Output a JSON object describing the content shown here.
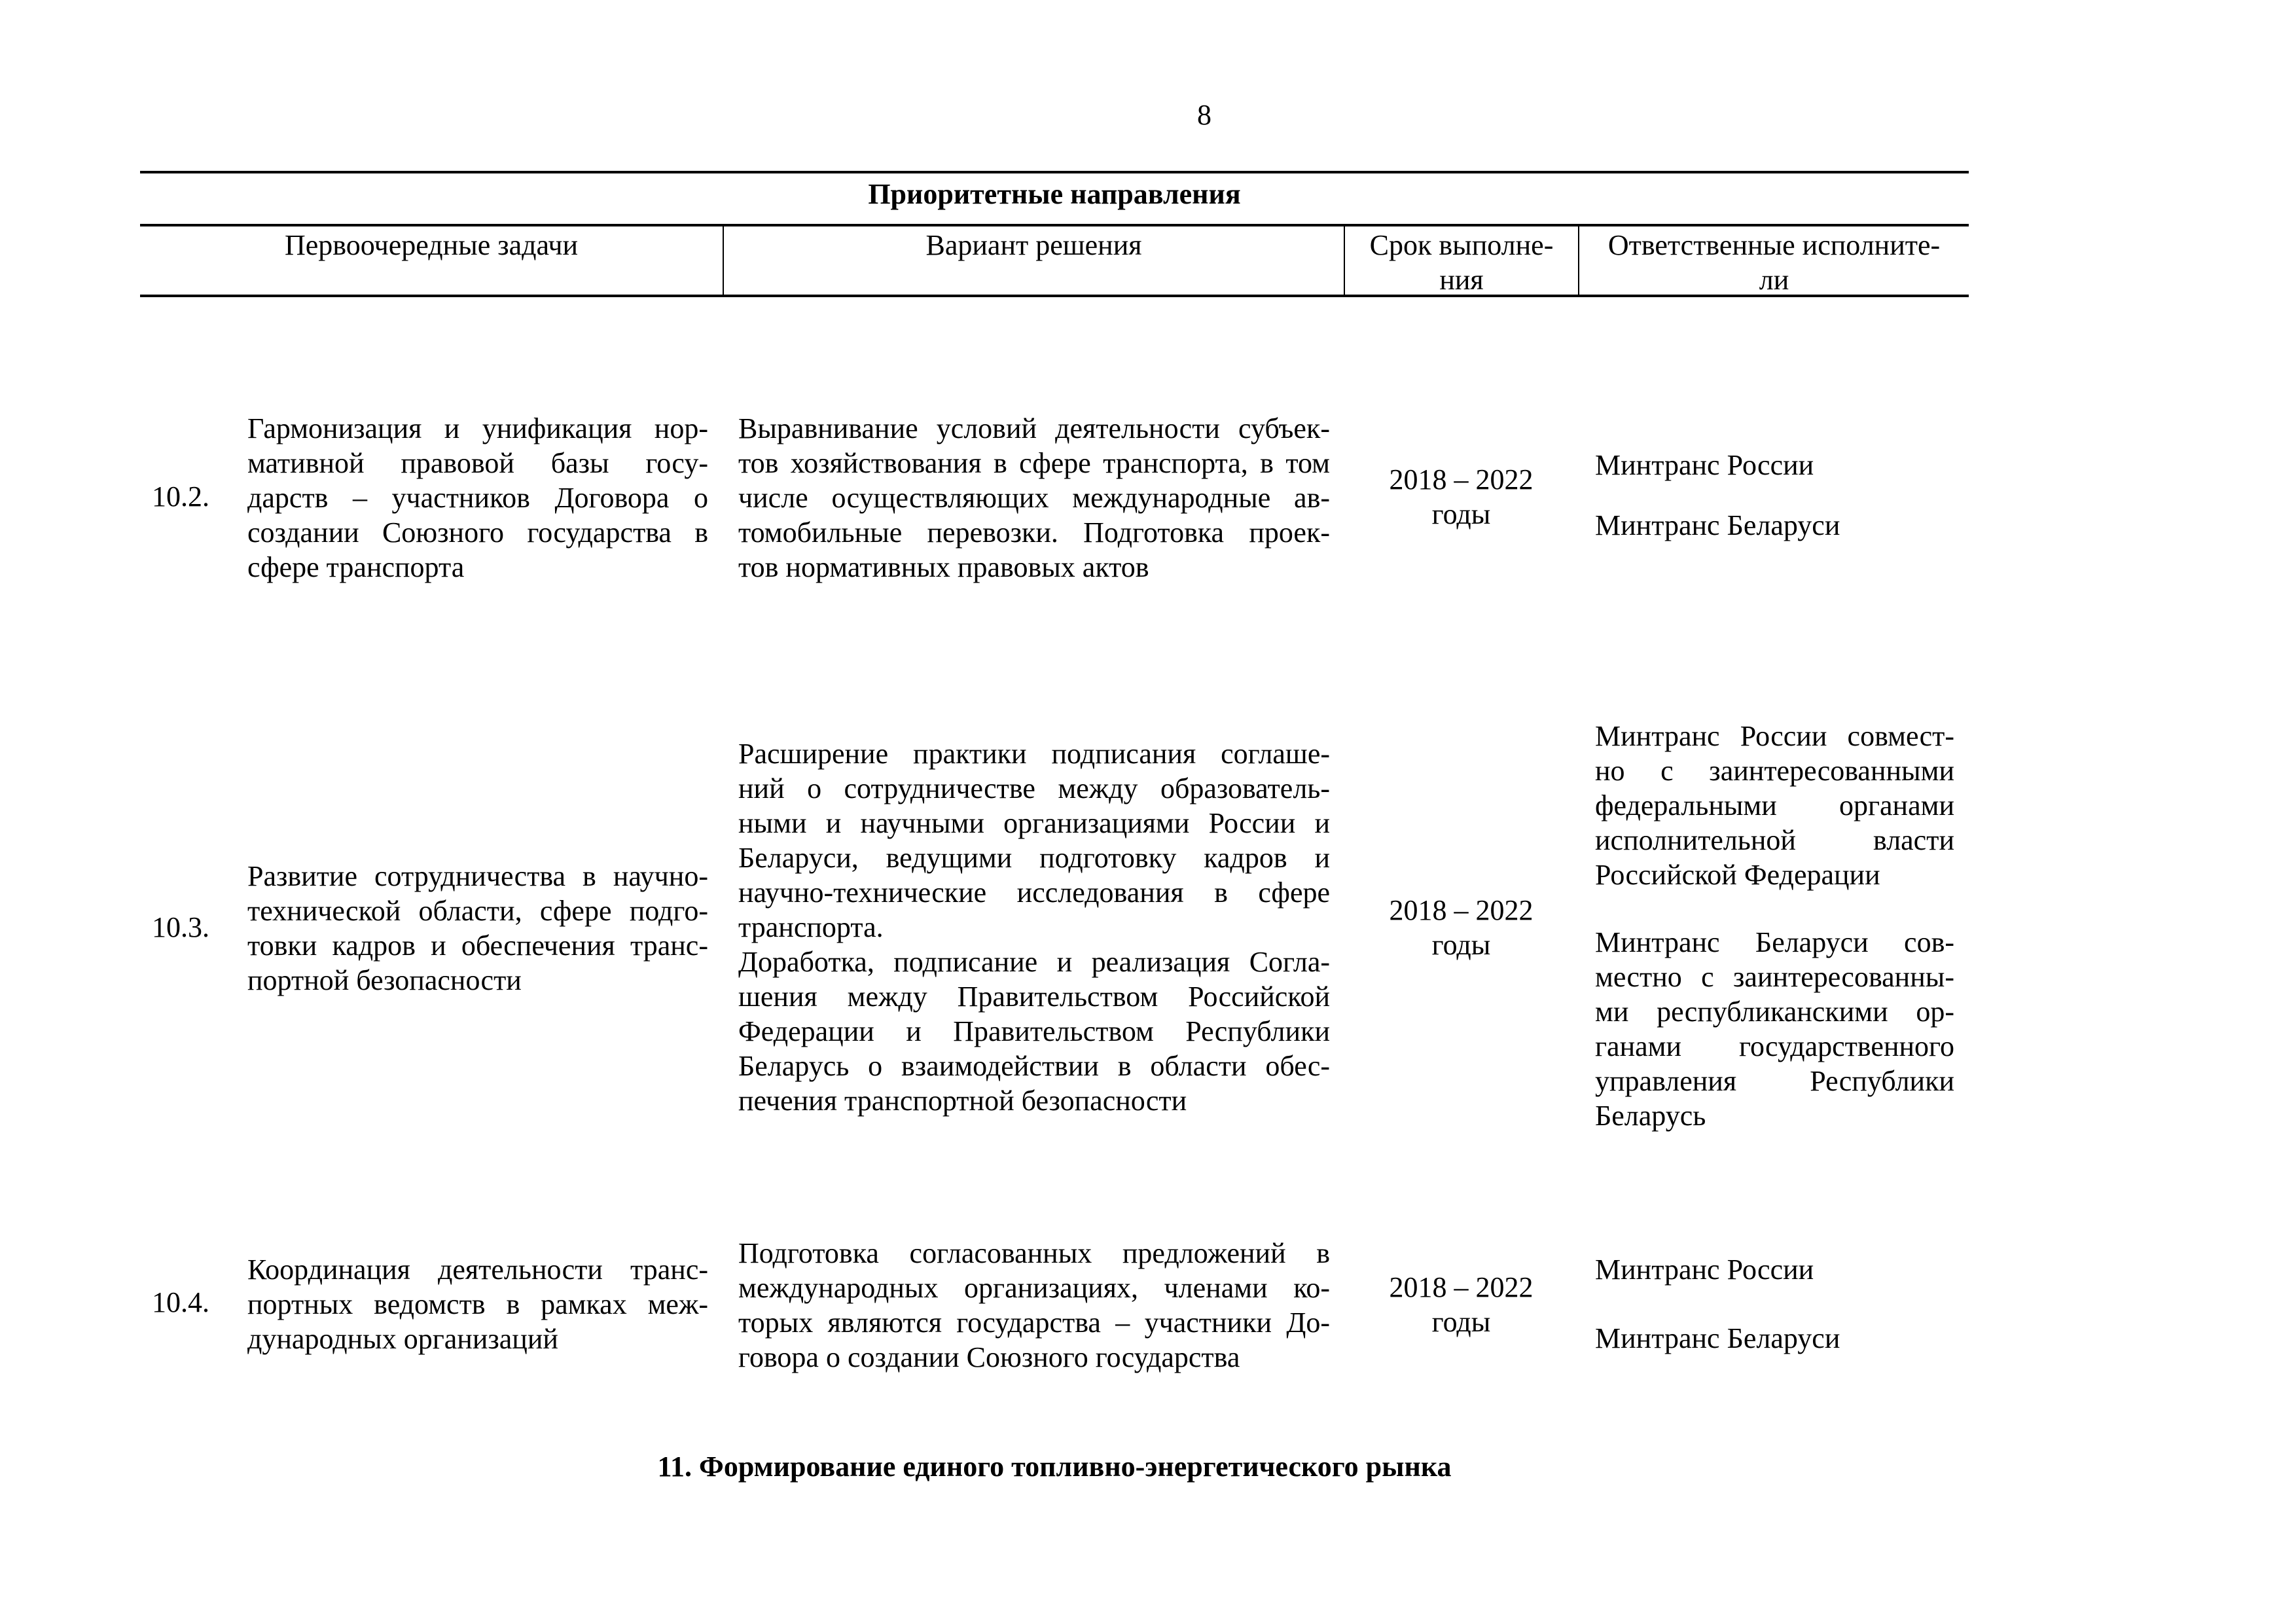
{
  "page_number": "8",
  "table": {
    "title": "Приоритетные направления",
    "headers": {
      "tasks": "Первоочередные задачи",
      "solution": "Вариант решения",
      "term": [
        "Срок выполне-",
        "ния"
      ],
      "responsible": [
        "Ответственные исполните-",
        "ли"
      ]
    },
    "rows": [
      {
        "number": "10.2.",
        "task": [
          "Гармонизация и унификация нор-",
          "мативной правовой базы госу-",
          "дарств – участников Договора о",
          "создании Союзного государства в",
          "сфере транспорта"
        ],
        "solution": [
          "Выравнивание условий деятельности субъек-",
          "тов хозяйствования в сфере транспорта, в том",
          "числе осуществляющих международные ав-",
          "томобильные перевозки. Подготовка проек-",
          "тов нормативных правовых актов"
        ],
        "term": [
          "2018 – 2022",
          "годы"
        ],
        "responsible": [
          [
            "Минтранс России"
          ],
          [
            "Минтранс Беларуси"
          ]
        ]
      },
      {
        "number": "10.3.",
        "task": [
          "Развитие сотрудничества в научно-",
          "технической области, сфере подго-",
          "товки кадров и обеспечения транс-",
          "портной безопасности"
        ],
        "solution": [
          "Расширение практики подписания соглаше-",
          "ний о сотрудничестве между образователь-",
          "ными и научными организациями России и",
          "Беларуси, ведущими подготовку кадров и",
          "научно-технические исследования в сфере",
          "транспорта.",
          "Доработка, подписание и реализация Согла-",
          "шения между Правительством Российской",
          "Федерации и Правительством Республики",
          "Беларусь о взаимодействии в области обес-",
          "печения транспортной безопасности"
        ],
        "term": [
          "2018 – 2022",
          "годы"
        ],
        "responsible": [
          [
            "Минтранс России совмест-",
            "но с заинтересованными",
            "федеральными органами",
            "исполнительной власти",
            "Российской Федерации"
          ],
          [
            "Минтранс Беларуси сов-",
            "местно с заинтересованны-",
            "ми республиканскими ор-",
            "ганами государственного",
            "управления Республики",
            "Беларусь"
          ]
        ]
      },
      {
        "number": "10.4.",
        "task": [
          "Координация деятельности транс-",
          "портных ведомств в рамках меж-",
          "дународных организаций"
        ],
        "solution": [
          "Подготовка согласованных предложений в",
          "международных организациях, членами ко-",
          "торых являются государства – участники До-",
          "говора о создании Союзного государства"
        ],
        "term": [
          "2018 – 2022",
          "годы"
        ],
        "responsible": [
          [
            "Минтранс России"
          ],
          [
            "Минтранс Беларуси"
          ]
        ]
      }
    ]
  },
  "section_heading": "11. Формирование единого топливно-энергетического рынка"
}
